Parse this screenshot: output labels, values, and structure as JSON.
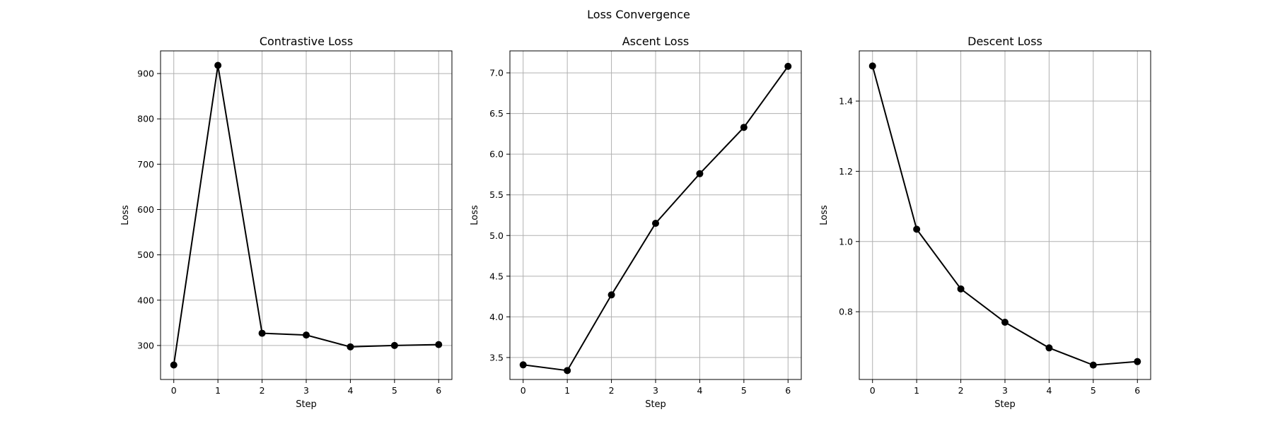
{
  "figure": {
    "title": "Loss Convergence"
  },
  "chart_data": [
    {
      "type": "line",
      "title": "Contrastive Loss",
      "xlabel": "Step",
      "ylabel": "Loss",
      "x": [
        0,
        1,
        2,
        3,
        4,
        5,
        6
      ],
      "y": [
        257,
        918,
        327,
        323,
        297,
        300,
        302
      ],
      "xlim": [
        -0.3,
        6.3
      ],
      "ylim": [
        225,
        950
      ],
      "xticks": [
        0,
        1,
        2,
        3,
        4,
        5,
        6
      ],
      "yticks": [
        300,
        400,
        500,
        600,
        700,
        800,
        900
      ],
      "ytick_labels": [
        "300",
        "400",
        "500",
        "600",
        "700",
        "800",
        "900"
      ],
      "grid": true
    },
    {
      "type": "line",
      "title": "Ascent Loss",
      "xlabel": "Step",
      "ylabel": "Loss",
      "x": [
        0,
        1,
        2,
        3,
        4,
        5,
        6
      ],
      "y": [
        3.41,
        3.34,
        4.27,
        5.15,
        5.76,
        6.33,
        7.08
      ],
      "xlim": [
        -0.3,
        6.3
      ],
      "ylim": [
        3.23,
        7.27
      ],
      "xticks": [
        0,
        1,
        2,
        3,
        4,
        5,
        6
      ],
      "yticks": [
        3.5,
        4.0,
        4.5,
        5.0,
        5.5,
        6.0,
        6.5,
        7.0
      ],
      "ytick_labels": [
        "3.5",
        "4.0",
        "4.5",
        "5.0",
        "5.5",
        "6.0",
        "6.5",
        "7.0"
      ],
      "grid": true
    },
    {
      "type": "line",
      "title": "Descent Loss",
      "xlabel": "Step",
      "ylabel": "Loss",
      "x": [
        0,
        1,
        2,
        3,
        4,
        5,
        6
      ],
      "y": [
        1.5,
        1.035,
        0.865,
        0.77,
        0.697,
        0.648,
        0.658
      ],
      "xlim": [
        -0.3,
        6.3
      ],
      "ylim": [
        0.607,
        1.543
      ],
      "xticks": [
        0,
        1,
        2,
        3,
        4,
        5,
        6
      ],
      "yticks": [
        0.8,
        1.0,
        1.2,
        1.4
      ],
      "ytick_labels": [
        "0.8",
        "1.0",
        "1.2",
        "1.4"
      ],
      "grid": true
    }
  ]
}
